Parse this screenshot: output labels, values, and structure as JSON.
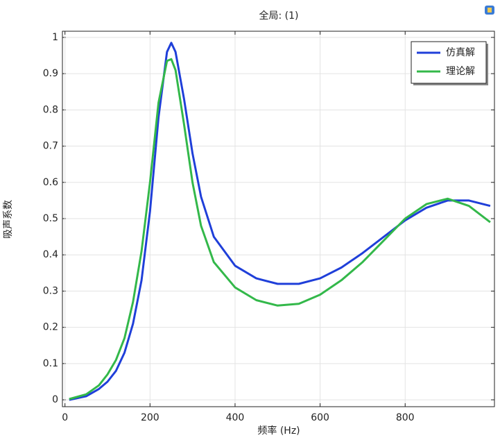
{
  "chart_data": {
    "type": "line",
    "title": "全局: (1)",
    "xlabel": "频率 (Hz)",
    "ylabel": "吸声系数",
    "x": [
      10,
      50,
      80,
      100,
      120,
      140,
      160,
      180,
      200,
      220,
      240,
      250,
      260,
      280,
      300,
      320,
      350,
      400,
      450,
      500,
      550,
      600,
      650,
      700,
      750,
      800,
      850,
      900,
      950,
      1000
    ],
    "series": [
      {
        "name": "仿真解",
        "color": "#1f3fd9",
        "values": [
          0,
          0.01,
          0.03,
          0.05,
          0.08,
          0.13,
          0.21,
          0.33,
          0.52,
          0.78,
          0.96,
          0.985,
          0.96,
          0.83,
          0.68,
          0.56,
          0.45,
          0.37,
          0.335,
          0.32,
          0.32,
          0.335,
          0.365,
          0.405,
          0.45,
          0.495,
          0.53,
          0.55,
          0.55,
          0.535
        ]
      },
      {
        "name": "理论解",
        "color": "#33b84a",
        "values": [
          0.002,
          0.015,
          0.04,
          0.07,
          0.11,
          0.17,
          0.27,
          0.41,
          0.6,
          0.82,
          0.935,
          0.94,
          0.91,
          0.76,
          0.6,
          0.48,
          0.38,
          0.31,
          0.275,
          0.26,
          0.265,
          0.29,
          0.33,
          0.38,
          0.44,
          0.5,
          0.54,
          0.555,
          0.535,
          0.49
        ]
      }
    ],
    "xlim": [
      -6,
      1010
    ],
    "xticks": [
      0,
      200,
      400,
      600,
      800
    ],
    "ylim": [
      -0.019,
      1.017
    ],
    "yticks": [
      0,
      0.1,
      0.2,
      0.3,
      0.4,
      0.5,
      0.6,
      0.7,
      0.8,
      0.9,
      1
    ],
    "grid": true,
    "legend": "upper right"
  }
}
